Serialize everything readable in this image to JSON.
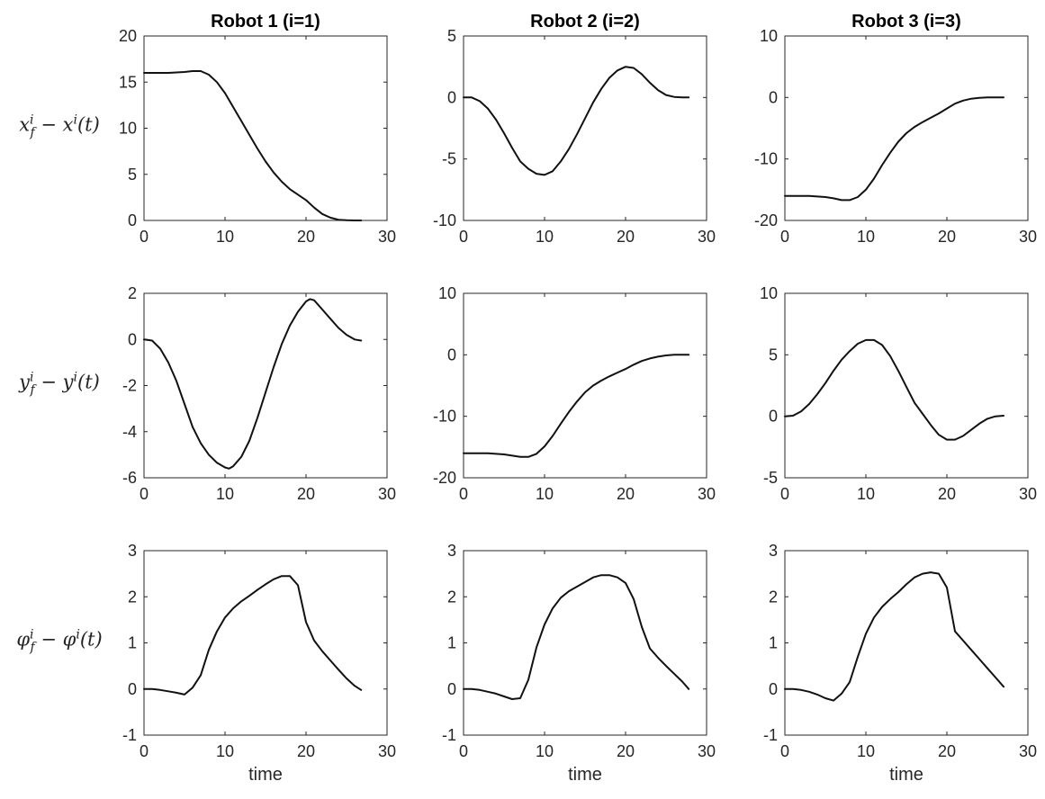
{
  "chart_data": [
    {
      "type": "line",
      "title": "Robot 1 (i=1)",
      "xlabel": "",
      "ylabel": "x_f^i − x^i(t)",
      "xlim": [
        0,
        30
      ],
      "ylim": [
        0,
        20
      ],
      "xticks": [
        0,
        10,
        20,
        30
      ],
      "yticks": [
        0,
        5,
        10,
        15,
        20
      ],
      "x": [
        0,
        1,
        3,
        5,
        6,
        7,
        8,
        9,
        10,
        11,
        12,
        13,
        14,
        15,
        16,
        17,
        18,
        19,
        20,
        21,
        22,
        23,
        24,
        25,
        26,
        26.8
      ],
      "y": [
        16,
        16,
        16,
        16.1,
        16.2,
        16.2,
        15.8,
        15,
        13.8,
        12.3,
        10.8,
        9.3,
        7.8,
        6.4,
        5.2,
        4.2,
        3.4,
        2.8,
        2.2,
        1.4,
        0.7,
        0.3,
        0.08,
        0.02,
        0,
        0
      ]
    },
    {
      "type": "line",
      "title": "Robot 2 (i=2)",
      "xlabel": "",
      "ylabel": "",
      "xlim": [
        0,
        30
      ],
      "ylim": [
        -10,
        5
      ],
      "xticks": [
        0,
        10,
        20,
        30
      ],
      "yticks": [
        -10,
        -5,
        0,
        5
      ],
      "x": [
        0,
        1,
        2,
        3,
        4,
        5,
        6,
        7,
        8,
        9,
        10,
        11,
        12,
        13,
        14,
        15,
        16,
        17,
        18,
        19,
        20,
        21,
        22,
        23,
        24,
        25,
        26,
        27,
        27.8
      ],
      "y": [
        0,
        0,
        -0.3,
        -0.9,
        -1.8,
        -2.9,
        -4.1,
        -5.2,
        -5.8,
        -6.2,
        -6.3,
        -6,
        -5.2,
        -4.2,
        -3,
        -1.7,
        -0.4,
        0.7,
        1.6,
        2.2,
        2.5,
        2.4,
        1.9,
        1.2,
        0.6,
        0.2,
        0.05,
        0,
        0
      ]
    },
    {
      "type": "line",
      "title": "Robot 3 (i=3)",
      "xlabel": "",
      "ylabel": "",
      "xlim": [
        0,
        30
      ],
      "ylim": [
        -20,
        10
      ],
      "xticks": [
        0,
        10,
        20,
        30
      ],
      "yticks": [
        -20,
        -10,
        0,
        10
      ],
      "x": [
        0,
        1,
        2,
        3,
        4,
        5,
        6,
        7,
        8,
        9,
        10,
        11,
        12,
        13,
        14,
        15,
        16,
        17,
        18,
        19,
        20,
        21,
        22,
        23,
        24,
        25,
        26,
        27
      ],
      "y": [
        -16,
        -16,
        -16,
        -16,
        -16.1,
        -16.2,
        -16.4,
        -16.7,
        -16.7,
        -16.2,
        -15,
        -13.2,
        -11,
        -9,
        -7.2,
        -5.8,
        -4.8,
        -4,
        -3.3,
        -2.6,
        -1.8,
        -1,
        -0.5,
        -0.2,
        -0.05,
        0,
        0,
        0
      ]
    },
    {
      "type": "line",
      "title": "",
      "xlabel": "",
      "ylabel": "y_f^i − y^i(t)",
      "xlim": [
        0,
        30
      ],
      "ylim": [
        -6,
        2
      ],
      "xticks": [
        0,
        10,
        20,
        30
      ],
      "yticks": [
        -6,
        -4,
        -2,
        0,
        2
      ],
      "x": [
        0,
        1,
        2,
        3,
        4,
        5,
        6,
        7,
        8,
        9,
        10,
        10.5,
        11,
        12,
        13,
        14,
        15,
        16,
        17,
        18,
        19,
        20,
        20.5,
        21,
        22,
        23,
        24,
        25,
        26,
        26.8
      ],
      "y": [
        0,
        -0.05,
        -0.4,
        -1,
        -1.8,
        -2.8,
        -3.8,
        -4.5,
        -5,
        -5.35,
        -5.55,
        -5.6,
        -5.5,
        -5.1,
        -4.4,
        -3.4,
        -2.3,
        -1.2,
        -0.2,
        0.6,
        1.2,
        1.65,
        1.75,
        1.7,
        1.3,
        0.9,
        0.5,
        0.2,
        0,
        -0.05
      ]
    },
    {
      "type": "line",
      "title": "",
      "xlabel": "",
      "ylabel": "",
      "xlim": [
        0,
        30
      ],
      "ylim": [
        -20,
        10
      ],
      "xticks": [
        0,
        10,
        20,
        30
      ],
      "yticks": [
        -20,
        -10,
        0,
        10
      ],
      "x": [
        0,
        1,
        2,
        3,
        4,
        5,
        6,
        7,
        8,
        9,
        10,
        11,
        12,
        13,
        14,
        15,
        16,
        17,
        18,
        19,
        20,
        21,
        22,
        23,
        24,
        25,
        26,
        27,
        27.8
      ],
      "y": [
        -16,
        -16,
        -16,
        -16,
        -16.1,
        -16.2,
        -16.4,
        -16.6,
        -16.6,
        -16.1,
        -14.9,
        -13.2,
        -11.2,
        -9.3,
        -7.6,
        -6.1,
        -5,
        -4.2,
        -3.5,
        -2.9,
        -2.3,
        -1.6,
        -1,
        -0.6,
        -0.3,
        -0.1,
        0,
        0,
        0
      ]
    },
    {
      "type": "line",
      "title": "",
      "xlabel": "",
      "ylabel": "",
      "xlim": [
        0,
        30
      ],
      "ylim": [
        -5,
        10
      ],
      "xticks": [
        0,
        10,
        20,
        30
      ],
      "yticks": [
        -5,
        0,
        5,
        10
      ],
      "x": [
        0,
        1,
        2,
        3,
        4,
        5,
        6,
        7,
        8,
        9,
        10,
        11,
        12,
        13,
        14,
        15,
        16,
        17,
        18,
        19,
        20,
        21,
        22,
        23,
        24,
        25,
        26,
        27
      ],
      "y": [
        0,
        0.05,
        0.4,
        1,
        1.8,
        2.7,
        3.7,
        4.6,
        5.3,
        5.9,
        6.2,
        6.2,
        5.8,
        4.9,
        3.7,
        2.4,
        1.1,
        0.2,
        -0.7,
        -1.5,
        -1.9,
        -1.9,
        -1.6,
        -1.1,
        -0.6,
        -0.2,
        0,
        0.05
      ]
    },
    {
      "type": "line",
      "title": "",
      "xlabel": "time",
      "ylabel": "φ_f^i − φ^i(t)",
      "xlim": [
        0,
        30
      ],
      "ylim": [
        -1,
        3
      ],
      "xticks": [
        0,
        10,
        20,
        30
      ],
      "yticks": [
        -1,
        0,
        1,
        2,
        3
      ],
      "x": [
        0,
        1,
        2,
        3,
        4,
        5,
        6,
        7,
        8,
        9,
        10,
        11,
        12,
        13,
        14,
        15,
        16,
        17,
        18,
        19,
        20,
        21,
        22,
        23,
        24,
        25,
        26,
        26.8
      ],
      "y": [
        0,
        0,
        -0.02,
        -0.05,
        -0.08,
        -0.12,
        0.03,
        0.3,
        0.85,
        1.25,
        1.55,
        1.75,
        1.9,
        2.02,
        2.15,
        2.27,
        2.38,
        2.45,
        2.45,
        2.25,
        1.45,
        1.05,
        0.82,
        0.62,
        0.42,
        0.23,
        0.07,
        -0.02
      ]
    },
    {
      "type": "line",
      "title": "",
      "xlabel": "time",
      "ylabel": "",
      "xlim": [
        0,
        30
      ],
      "ylim": [
        -1,
        3
      ],
      "xticks": [
        0,
        10,
        20,
        30
      ],
      "yticks": [
        -1,
        0,
        1,
        2,
        3
      ],
      "x": [
        0,
        1,
        2,
        3,
        4,
        5,
        6,
        7,
        8,
        9,
        10,
        11,
        12,
        13,
        14,
        15,
        16,
        17,
        18,
        19,
        20,
        21,
        22,
        23,
        24,
        25,
        26,
        27,
        27.8
      ],
      "y": [
        0,
        0,
        -0.02,
        -0.06,
        -0.1,
        -0.16,
        -0.22,
        -0.2,
        0.2,
        0.9,
        1.4,
        1.75,
        1.98,
        2.12,
        2.22,
        2.32,
        2.42,
        2.47,
        2.47,
        2.42,
        2.3,
        1.95,
        1.35,
        0.88,
        0.68,
        0.5,
        0.33,
        0.16,
        0
      ]
    },
    {
      "type": "line",
      "title": "",
      "xlabel": "time",
      "ylabel": "",
      "xlim": [
        0,
        30
      ],
      "ylim": [
        -1,
        3
      ],
      "xticks": [
        0,
        10,
        20,
        30
      ],
      "yticks": [
        -1,
        0,
        1,
        2,
        3
      ],
      "x": [
        0,
        1,
        2,
        3,
        4,
        5,
        6,
        7,
        8,
        9,
        10,
        11,
        12,
        13,
        14,
        15,
        16,
        17,
        18,
        19,
        20,
        21,
        22,
        23,
        24,
        25,
        26,
        27
      ],
      "y": [
        0,
        0,
        -0.02,
        -0.06,
        -0.12,
        -0.2,
        -0.25,
        -0.1,
        0.15,
        0.7,
        1.2,
        1.55,
        1.78,
        1.95,
        2.1,
        2.27,
        2.42,
        2.5,
        2.53,
        2.5,
        2.2,
        1.25,
        1.05,
        0.85,
        0.65,
        0.45,
        0.25,
        0.05
      ]
    }
  ]
}
